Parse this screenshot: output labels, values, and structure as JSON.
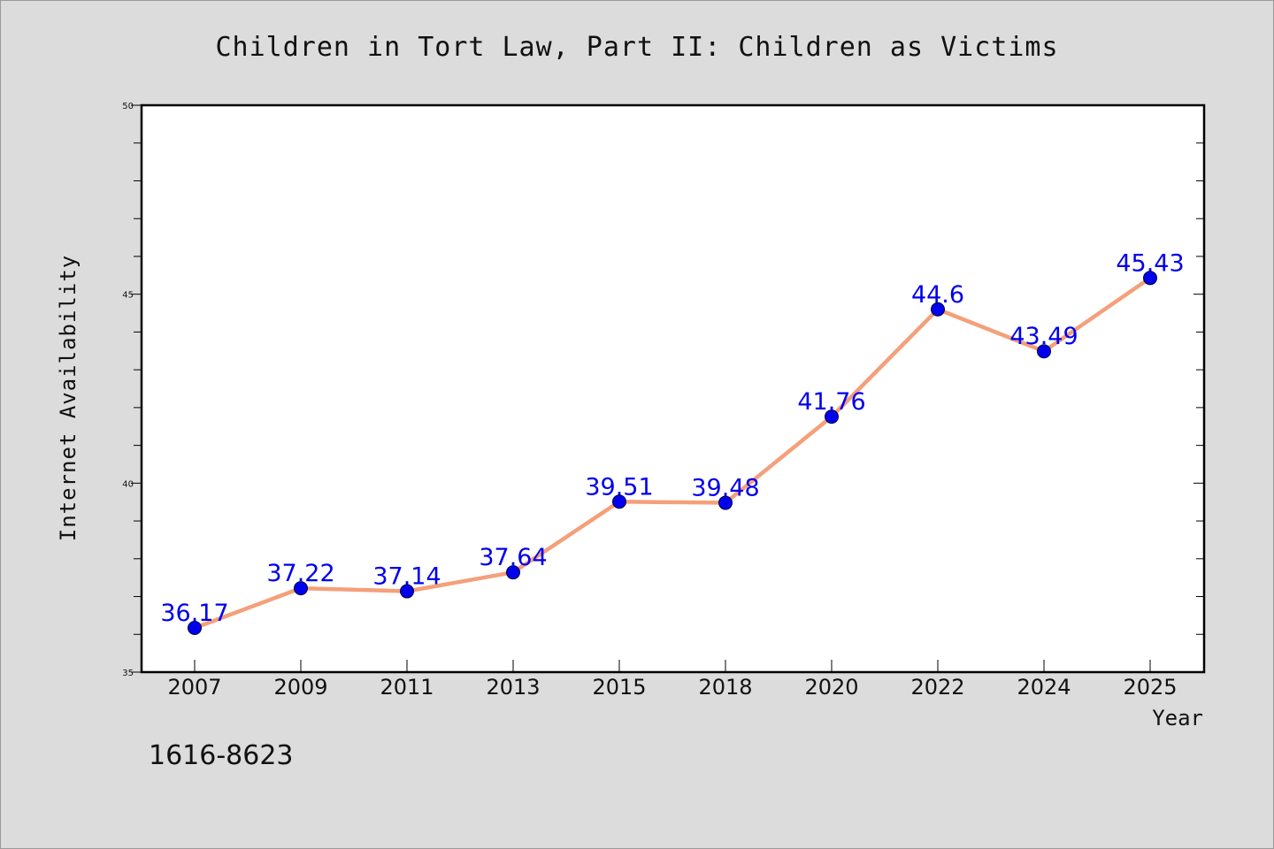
{
  "chart_data": {
    "type": "line",
    "title": "Children in Tort Law, Part II: Children as Victims",
    "xlabel": "Year",
    "ylabel": "Internet Availability",
    "categories": [
      "2007",
      "2009",
      "2011",
      "2013",
      "2015",
      "2018",
      "2020",
      "2022",
      "2024",
      "2025"
    ],
    "series": [
      {
        "values": [
          36.17,
          37.22,
          37.14,
          37.64,
          39.51,
          39.48,
          41.76,
          44.6,
          43.49,
          45.43
        ],
        "labels": [
          "36.17",
          "37.22",
          "37.14",
          "37.64",
          "39.51",
          "39.48",
          "41.76",
          "44.6",
          "43.49",
          "45.43"
        ]
      }
    ],
    "ylim": [
      35,
      50
    ],
    "yticks": [
      "35",
      "40",
      "45",
      "50"
    ],
    "grid": false,
    "line_color": "#f4a07a",
    "marker_color": "#0000ee",
    "label_color": "#0000ee"
  },
  "footnote": "1616-8623"
}
